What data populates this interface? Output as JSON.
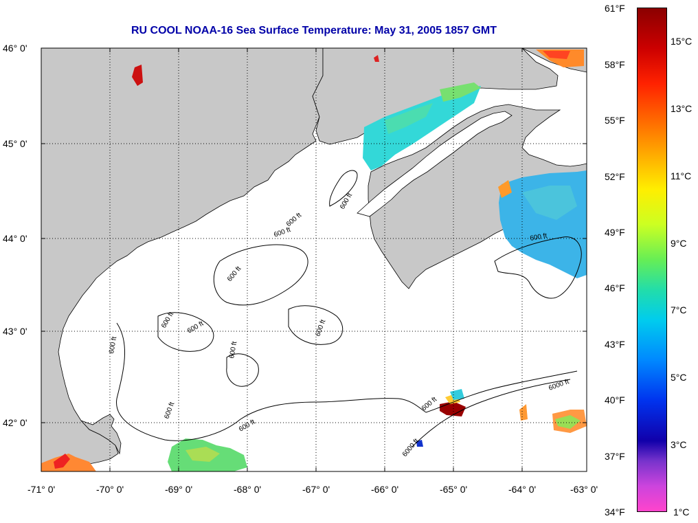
{
  "title": "RU COOL  NOAA-16  Sea Surface Temperature:  May 31, 2005 1857 GMT",
  "lat_labels": [
    "46° 0'",
    "45° 0'",
    "44° 0'",
    "43° 0'",
    "42° 0'"
  ],
  "lon_labels": [
    "-71° 0'",
    "-70° 0'",
    "-69° 0'",
    "-68° 0'",
    "-67° 0'",
    "-66° 0'",
    "-65° 0'",
    "-64° 0'",
    "-63° 0'"
  ],
  "contour_labels": [
    "600 ft",
    "600 ft",
    "600 ft",
    "600 ft",
    "600 ft",
    "600 ft",
    "600 ft",
    "600 ft",
    "600 ft",
    "600 ft",
    "600 ft",
    "600 ft",
    "600 ft",
    "6000 ft",
    "6000 ft"
  ],
  "colorbar": {
    "fahrenheit_labels": [
      "61°F",
      "58°F",
      "55°F",
      "52°F",
      "49°F",
      "46°F",
      "43°F",
      "40°F",
      "37°F",
      "34°F"
    ],
    "celsius_labels": [
      "15°C",
      "13°C",
      "11°C",
      "9°C",
      "7°C",
      "5°C",
      "3°C",
      "1°C"
    ]
  },
  "colors": {
    "land": "#c8c8c8",
    "ocean": "#ffffff",
    "title": "#0000a8"
  }
}
